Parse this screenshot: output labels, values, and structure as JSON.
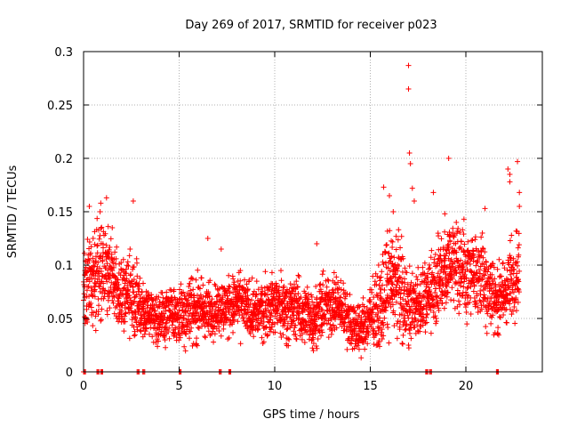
{
  "chart_data": {
    "type": "scatter",
    "title": "Day 269 of 2017, SRMTID for receiver p023",
    "xlabel": "GPS time / hours",
    "ylabel": "SRMTID / TECUs",
    "xlim": [
      0,
      24
    ],
    "ylim": [
      0,
      0.3
    ],
    "xticks": [
      "0",
      "5",
      "10",
      "15",
      "20"
    ],
    "xtick_values": [
      0,
      5,
      10,
      15,
      20
    ],
    "yticks": [
      "0",
      "0.05",
      "0.1",
      "0.15",
      "0.2",
      "0.25",
      "0.3"
    ],
    "ytick_values": [
      0,
      0.05,
      0.1,
      0.15,
      0.2,
      0.25,
      0.3
    ],
    "grid": true,
    "series": [
      {
        "name": "SRMTID",
        "marker": "plus",
        "color": "#ff0000",
        "envelope_x": [
          0,
          0.5,
          1,
          1.5,
          2,
          2.5,
          3,
          3.5,
          4,
          4.5,
          5,
          5.5,
          6,
          6.5,
          7,
          7.5,
          8,
          8.5,
          9,
          9.5,
          10,
          10.5,
          11,
          11.5,
          12,
          12.5,
          13,
          13.5,
          14,
          14.5,
          15,
          15.5,
          16,
          16.5,
          17,
          17.5,
          18,
          18.5,
          19,
          19.5,
          20,
          20.5,
          21,
          21.5,
          22,
          22.5,
          22.8
        ],
        "envelope_mean": [
          0.075,
          0.085,
          0.1,
          0.09,
          0.07,
          0.075,
          0.06,
          0.055,
          0.05,
          0.055,
          0.05,
          0.06,
          0.06,
          0.055,
          0.06,
          0.06,
          0.065,
          0.06,
          0.055,
          0.06,
          0.065,
          0.06,
          0.06,
          0.055,
          0.05,
          0.06,
          0.065,
          0.06,
          0.045,
          0.04,
          0.05,
          0.06,
          0.09,
          0.08,
          0.06,
          0.065,
          0.07,
          0.085,
          0.1,
          0.105,
          0.09,
          0.09,
          0.085,
          0.07,
          0.07,
          0.09,
          0.1
        ],
        "envelope_spread": [
          0.03,
          0.035,
          0.035,
          0.03,
          0.025,
          0.03,
          0.025,
          0.02,
          0.02,
          0.02,
          0.02,
          0.025,
          0.025,
          0.02,
          0.02,
          0.02,
          0.022,
          0.02,
          0.02,
          0.022,
          0.022,
          0.022,
          0.022,
          0.022,
          0.02,
          0.022,
          0.022,
          0.02,
          0.018,
          0.018,
          0.02,
          0.03,
          0.035,
          0.035,
          0.03,
          0.025,
          0.025,
          0.03,
          0.035,
          0.035,
          0.03,
          0.03,
          0.03,
          0.025,
          0.025,
          0.03,
          0.035
        ],
        "outliers": [
          [
            0.3,
            0.155
          ],
          [
            0.5,
            0.125
          ],
          [
            0.9,
            0.158
          ],
          [
            1.2,
            0.163
          ],
          [
            1.5,
            0.135
          ],
          [
            2.6,
            0.16
          ],
          [
            6.5,
            0.125
          ],
          [
            7.2,
            0.115
          ],
          [
            12.2,
            0.12
          ],
          [
            15.7,
            0.173
          ],
          [
            16.0,
            0.165
          ],
          [
            16.2,
            0.15
          ],
          [
            17.0,
            0.287
          ],
          [
            17.0,
            0.265
          ],
          [
            17.05,
            0.205
          ],
          [
            17.1,
            0.195
          ],
          [
            17.2,
            0.172
          ],
          [
            17.3,
            0.16
          ],
          [
            18.3,
            0.168
          ],
          [
            18.9,
            0.148
          ],
          [
            19.1,
            0.2
          ],
          [
            19.5,
            0.14
          ],
          [
            19.9,
            0.143
          ],
          [
            21.0,
            0.153
          ],
          [
            22.2,
            0.19
          ],
          [
            22.3,
            0.185
          ],
          [
            22.3,
            0.178
          ],
          [
            22.7,
            0.197
          ],
          [
            22.8,
            0.168
          ],
          [
            22.8,
            0.155
          ]
        ],
        "zero_points": [
          0,
          0.7,
          0.9,
          2.8,
          3.1,
          5.0,
          7.1,
          7.6,
          17.9,
          18.1,
          21.6
        ]
      }
    ]
  }
}
